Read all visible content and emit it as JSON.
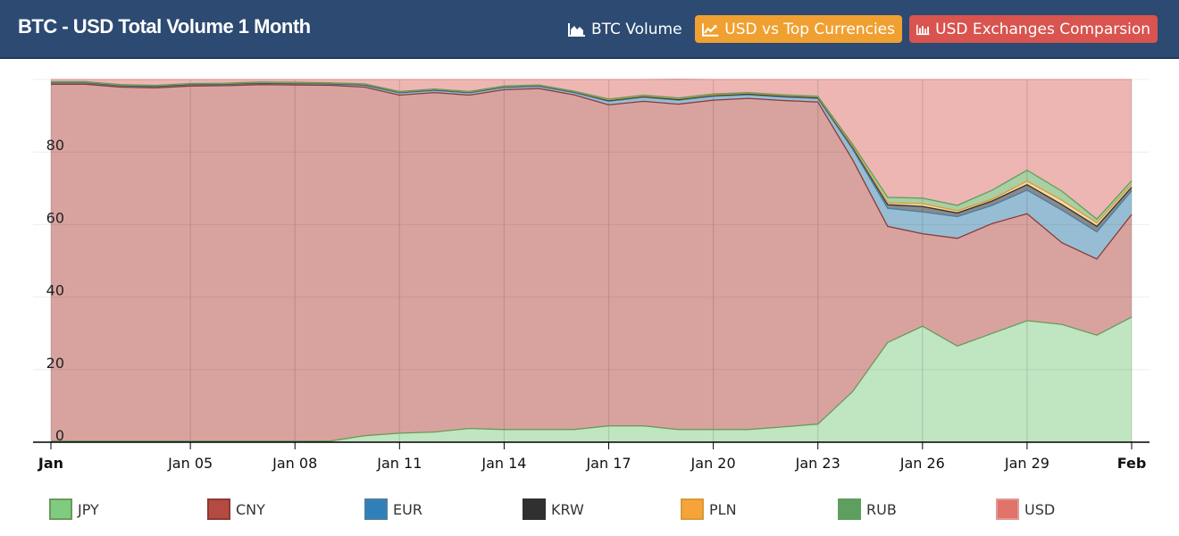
{
  "header": {
    "title": "BTC - USD Total Volume 1 Month",
    "buttons": {
      "volume_label": "BTC Volume",
      "top_currencies_label": "USD vs Top Currencies",
      "exchanges_label": "USD Exchanges Comparsion"
    }
  },
  "chart_data": {
    "type": "area",
    "stacking": "percent",
    "title": "",
    "xlabel": "",
    "ylabel": "",
    "x": [
      "Jan 01",
      "Jan 02",
      "Jan 03",
      "Jan 04",
      "Jan 05",
      "Jan 06",
      "Jan 07",
      "Jan 08",
      "Jan 09",
      "Jan 10",
      "Jan 11",
      "Jan 12",
      "Jan 13",
      "Jan 14",
      "Jan 15",
      "Jan 16",
      "Jan 17",
      "Jan 18",
      "Jan 19",
      "Jan 20",
      "Jan 21",
      "Jan 22",
      "Jan 23",
      "Jan 24",
      "Jan 25",
      "Jan 26",
      "Jan 27",
      "Jan 28",
      "Jan 29",
      "Jan 30",
      "Jan 31",
      "Feb 01"
    ],
    "x_ticks": [
      {
        "label": "Jan",
        "bold": true
      },
      {
        "label": "Jan 05",
        "bold": false
      },
      {
        "label": "Jan 08",
        "bold": false
      },
      {
        "label": "Jan 11",
        "bold": false
      },
      {
        "label": "Jan 14",
        "bold": false
      },
      {
        "label": "Jan 17",
        "bold": false
      },
      {
        "label": "Jan 20",
        "bold": false
      },
      {
        "label": "Jan 23",
        "bold": false
      },
      {
        "label": "Jan 26",
        "bold": false
      },
      {
        "label": "Jan 29",
        "bold": false
      },
      {
        "label": "Feb",
        "bold": true
      }
    ],
    "x_tick_index": [
      0,
      4,
      7,
      10,
      13,
      16,
      19,
      22,
      25,
      28,
      31
    ],
    "y_ticks": [
      "0",
      "20",
      "40",
      "60",
      "80"
    ],
    "y_tick_values": [
      0,
      20,
      40,
      60,
      80
    ],
    "ylim": [
      0,
      100
    ],
    "grid": true,
    "legend_position": "bottom",
    "series": [
      {
        "name": "JPY",
        "color": "#7fcc80",
        "fill": "#c0e5c1",
        "line": "#6a9a5a",
        "values": [
          0.3,
          0.3,
          0.3,
          0.3,
          0.3,
          0.3,
          0.3,
          0.3,
          0.3,
          1.8,
          2.5,
          2.8,
          3.8,
          3.5,
          3.5,
          3.5,
          4.5,
          4.5,
          3.5,
          3.5,
          3.5,
          4.2,
          5.0,
          14.0,
          27.5,
          32.0,
          26.5,
          30.0,
          33.5,
          32.5,
          29.5,
          34.5
        ]
      },
      {
        "name": "CNY",
        "color": "#b54a41",
        "fill": "#d8a39f",
        "line": "#8c3a34",
        "values": [
          98.4,
          98.4,
          97.6,
          97.4,
          97.9,
          98.0,
          98.3,
          98.2,
          98.1,
          96.1,
          93.2,
          93.6,
          91.9,
          93.7,
          94.0,
          92.3,
          88.5,
          89.5,
          89.7,
          90.8,
          91.3,
          90.0,
          88.8,
          63.8,
          32.0,
          25.5,
          29.7,
          30.3,
          29.5,
          22.5,
          21.0,
          28.3
        ]
      },
      {
        "name": "EUR",
        "color": "#2f80b8",
        "fill": "#97bdd4",
        "line": "#4a7ea0",
        "values": [
          0.3,
          0.3,
          0.3,
          0.3,
          0.3,
          0.3,
          0.3,
          0.3,
          0.3,
          0.5,
          0.6,
          0.6,
          0.6,
          0.6,
          0.6,
          0.6,
          1.0,
          1.1,
          1.1,
          1.1,
          1.0,
          1.0,
          1.0,
          3.0,
          5.0,
          6.0,
          6.0,
          5.0,
          6.5,
          9.0,
          7.5,
          6.5
        ]
      },
      {
        "name": "KRW",
        "color": "#303030",
        "fill": "#8a8a8a",
        "line": "#303030",
        "values": [
          0.2,
          0.2,
          0.2,
          0.2,
          0.2,
          0.2,
          0.2,
          0.2,
          0.2,
          0.2,
          0.2,
          0.2,
          0.2,
          0.2,
          0.2,
          0.2,
          0.2,
          0.2,
          0.2,
          0.2,
          0.2,
          0.2,
          0.2,
          0.5,
          1.0,
          1.5,
          1.0,
          1.2,
          1.5,
          1.5,
          1.5,
          1.0
        ]
      },
      {
        "name": "PLN",
        "color": "#f6a43a",
        "fill": "#f6d9a3",
        "line": "#d99a3a",
        "values": [
          0.1,
          0.1,
          0.1,
          0.1,
          0.1,
          0.1,
          0.1,
          0.1,
          0.1,
          0.1,
          0.1,
          0.1,
          0.1,
          0.1,
          0.1,
          0.1,
          0.2,
          0.2,
          0.2,
          0.2,
          0.2,
          0.2,
          0.2,
          0.3,
          0.5,
          0.8,
          0.6,
          0.5,
          1.0,
          1.2,
          1.0,
          0.8
        ]
      },
      {
        "name": "RUB",
        "color": "#5e9e5f",
        "fill": "#a9cfa3",
        "line": "#5e9e5f",
        "values": [
          0.1,
          0.1,
          0.1,
          0.1,
          0.1,
          0.1,
          0.1,
          0.1,
          0.1,
          0.1,
          0.1,
          0.1,
          0.1,
          0.1,
          0.1,
          0.1,
          0.2,
          0.2,
          0.2,
          0.2,
          0.2,
          0.2,
          0.2,
          0.5,
          1.5,
          1.5,
          1.5,
          2.5,
          3.0,
          2.5,
          1.0,
          1.0
        ]
      },
      {
        "name": "USD",
        "color": "#e0736a",
        "fill": "#edb6b2",
        "line": "#e29a94",
        "values": [
          0.6,
          0.6,
          1.4,
          1.6,
          1.1,
          1.0,
          0.7,
          0.8,
          0.9,
          1.2,
          3.3,
          2.6,
          3.3,
          1.8,
          1.5,
          3.2,
          5.4,
          4.3,
          5.2,
          4.0,
          3.6,
          4.2,
          4.6,
          17.9,
          32.5,
          32.7,
          34.7,
          30.5,
          25.0,
          30.8,
          38.5,
          27.9
        ]
      }
    ]
  }
}
